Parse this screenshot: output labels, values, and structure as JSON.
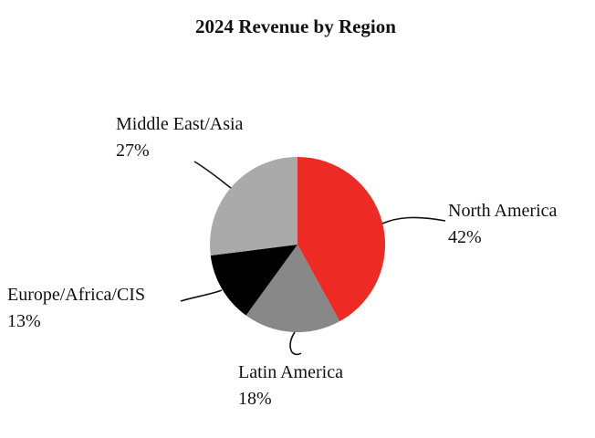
{
  "chart_data": {
    "type": "pie",
    "title": "2024 Revenue by Region",
    "slices": [
      {
        "label": "North America",
        "value": 42,
        "value_label": "42%",
        "color": "#ee2a24"
      },
      {
        "label": "Latin America",
        "value": 18,
        "value_label": "18%",
        "color": "#888888"
      },
      {
        "label": "Europe/Africa/CIS",
        "value": 13,
        "value_label": "13%",
        "color": "#000000"
      },
      {
        "label": "Middle East/Asia",
        "value": 27,
        "value_label": "27%",
        "color": "#aaaaaa"
      }
    ],
    "start_angle": "12 o'clock",
    "direction": "clockwise",
    "legend": "none"
  }
}
